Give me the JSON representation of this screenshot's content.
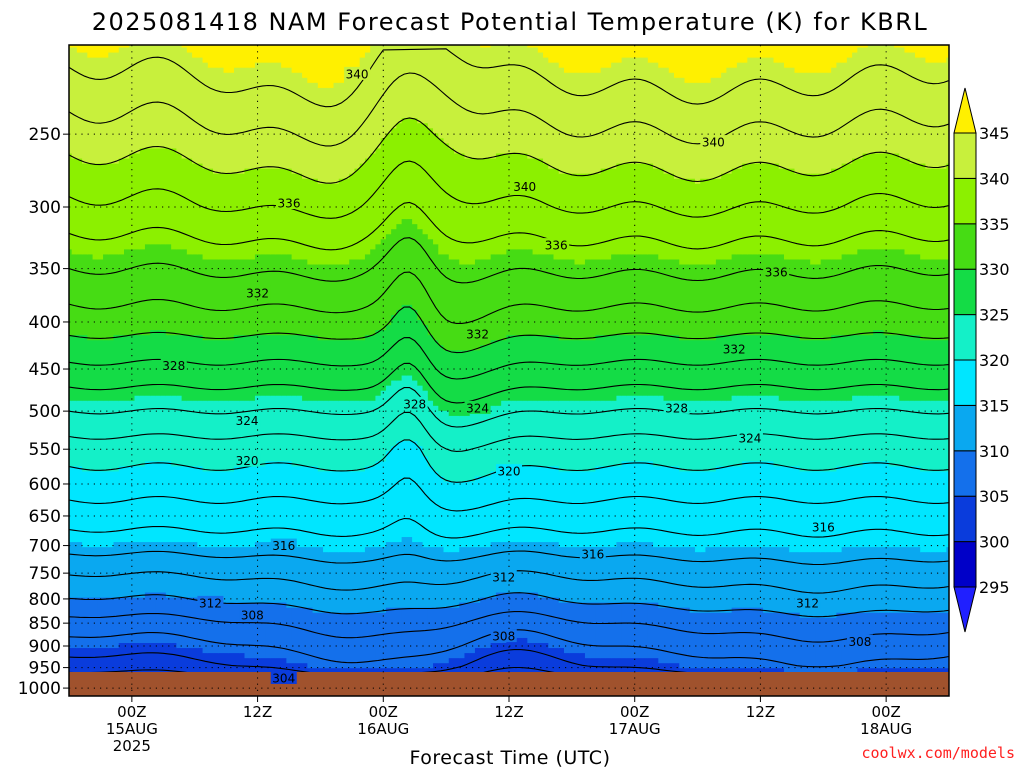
{
  "chart_data": {
    "type": "heatmap",
    "title": "2025081418 NAM Forecast Potential Temperature (K) for KBRL",
    "xlabel": "Forecast Time (UTC)",
    "ylabel": "",
    "y_scale": "log-pressure",
    "y_range_hpa": [
      1020,
      200
    ],
    "y_ticks": [
      250,
      300,
      350,
      400,
      450,
      500,
      550,
      600,
      650,
      700,
      750,
      800,
      850,
      900,
      950,
      1000
    ],
    "x_ticks": [
      {
        "hour": 6,
        "line1": "00Z",
        "line2": "15AUG",
        "line3": "2025"
      },
      {
        "hour": 18,
        "line1": "12Z",
        "line2": "",
        "line3": ""
      },
      {
        "hour": 30,
        "line1": "00Z",
        "line2": "16AUG",
        "line3": ""
      },
      {
        "hour": 42,
        "line1": "12Z",
        "line2": "",
        "line3": ""
      },
      {
        "hour": 54,
        "line1": "00Z",
        "line2": "17AUG",
        "line3": ""
      },
      {
        "hour": 66,
        "line1": "12Z",
        "line2": "",
        "line3": ""
      },
      {
        "hour": 78,
        "line1": "00Z",
        "line2": "18AUG",
        "line3": ""
      }
    ],
    "x_range_hours": [
      0,
      84
    ],
    "colorbar": {
      "levels": [
        295,
        300,
        305,
        310,
        315,
        320,
        325,
        330,
        335,
        340,
        345
      ],
      "colors": [
        "#2020ff",
        "#0000c8",
        "#0a3cdc",
        "#1470eb",
        "#0aa8f0",
        "#00e6ff",
        "#14f0c8",
        "#14dc46",
        "#46dc14",
        "#8cf000",
        "#c8f03c",
        "#fff000"
      ],
      "extend": "both"
    },
    "contour_labels": [
      {
        "text": "340",
        "hour": 27.5,
        "p": 215
      },
      {
        "text": "340",
        "hour": 61.5,
        "p": 255
      },
      {
        "text": "340",
        "hour": 43.5,
        "p": 285
      },
      {
        "text": "336",
        "hour": 21,
        "p": 297
      },
      {
        "text": "336",
        "hour": 46.5,
        "p": 330
      },
      {
        "text": "336",
        "hour": 67.5,
        "p": 353
      },
      {
        "text": "332",
        "hour": 18,
        "p": 372
      },
      {
        "text": "332",
        "hour": 39,
        "p": 412
      },
      {
        "text": "332",
        "hour": 63.5,
        "p": 428
      },
      {
        "text": "328",
        "hour": 10,
        "p": 446
      },
      {
        "text": "328",
        "hour": 33,
        "p": 491
      },
      {
        "text": "324",
        "hour": 39,
        "p": 496
      },
      {
        "text": "328",
        "hour": 58,
        "p": 496
      },
      {
        "text": "324",
        "hour": 17,
        "p": 512
      },
      {
        "text": "324",
        "hour": 65,
        "p": 535
      },
      {
        "text": "320",
        "hour": 17,
        "p": 566
      },
      {
        "text": "320",
        "hour": 42,
        "p": 581
      },
      {
        "text": "316",
        "hour": 72,
        "p": 668
      },
      {
        "text": "316",
        "hour": 20.5,
        "p": 700
      },
      {
        "text": "316",
        "hour": 50,
        "p": 715
      },
      {
        "text": "312",
        "hour": 41.5,
        "p": 757
      },
      {
        "text": "312",
        "hour": 13.5,
        "p": 808
      },
      {
        "text": "312",
        "hour": 70.5,
        "p": 808
      },
      {
        "text": "308",
        "hour": 17.5,
        "p": 833
      },
      {
        "text": "308",
        "hour": 41.5,
        "p": 878
      },
      {
        "text": "308",
        "hour": 75.5,
        "p": 890
      },
      {
        "text": "304",
        "hour": 20.5,
        "p": 975
      }
    ],
    "contour_level_profile": {
      "pressures": [
        1000,
        950,
        900,
        850,
        800,
        750,
        700,
        650,
        600,
        550,
        500,
        450,
        400,
        350,
        300,
        250,
        200
      ],
      "theta": [
        300,
        304,
        306,
        308,
        310.5,
        312.5,
        315,
        317,
        319,
        321,
        324,
        327.5,
        331,
        334,
        337.5,
        341,
        345
      ]
    }
  },
  "footer": {
    "credit": "coolwx.com/models"
  }
}
